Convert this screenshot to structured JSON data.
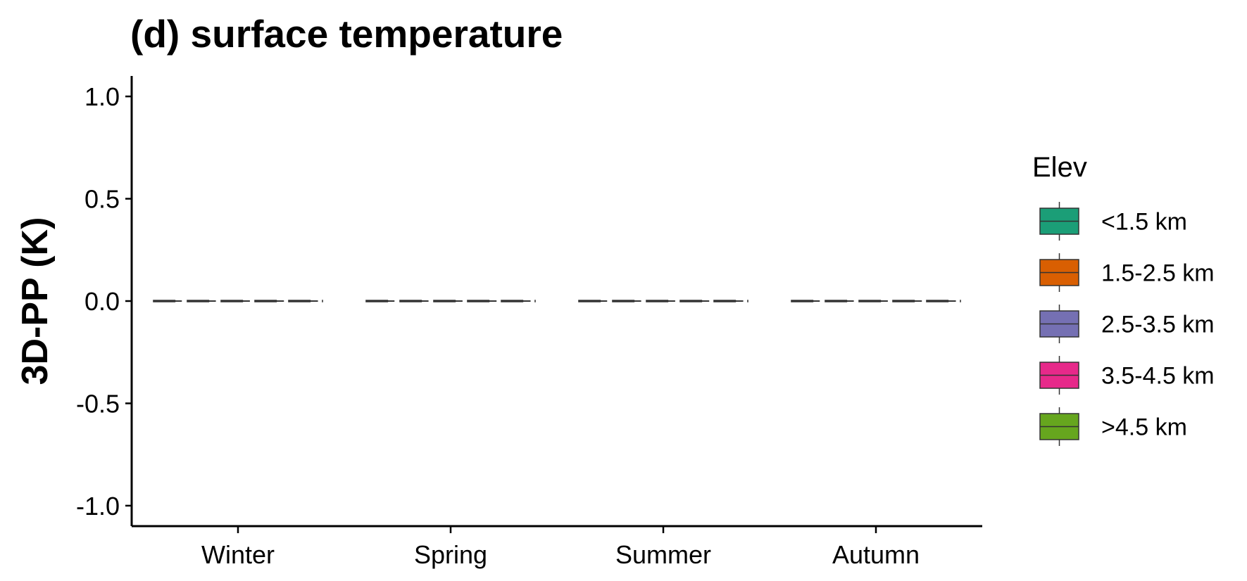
{
  "chart_data": {
    "type": "box",
    "title": "(d) surface temperature",
    "xlabel": "",
    "ylabel": "3D-PP (K)",
    "ylim": [
      -1.1,
      1.1
    ],
    "yticks": [
      1.0,
      0.5,
      0.0,
      -0.5,
      -1.0
    ],
    "ytick_labels": [
      "1.0",
      "0.5",
      "0.0",
      "-0.5",
      "-1.0"
    ],
    "categories": [
      "Winter",
      "Spring",
      "Summer",
      "Autumn"
    ],
    "reference_line": {
      "y": 0,
      "style": "dashed"
    },
    "legend": {
      "title": "Elev",
      "position": "right",
      "entries": [
        {
          "label": "<1.5 km",
          "color": "#1b9e77"
        },
        {
          "label": "1.5-2.5 km",
          "color": "#d95f02"
        },
        {
          "label": "2.5-3.5 km",
          "color": "#7570b3"
        },
        {
          "label": "3.5-4.5 km",
          "color": "#e7298a"
        },
        {
          "label": ">4.5 km",
          "color": "#66a61e"
        }
      ]
    },
    "series": [
      {
        "name": "<1.5 km",
        "values": [
          0,
          0,
          0,
          0
        ]
      },
      {
        "name": "1.5-2.5 km",
        "values": [
          0,
          0,
          0,
          0
        ]
      },
      {
        "name": "2.5-3.5 km",
        "values": [
          0,
          0,
          0,
          0
        ]
      },
      {
        "name": "3.5-4.5 km",
        "values": [
          0,
          0,
          0,
          0
        ]
      },
      {
        "name": ">4.5 km",
        "values": [
          0,
          0,
          0,
          0
        ]
      }
    ],
    "grid": false
  }
}
